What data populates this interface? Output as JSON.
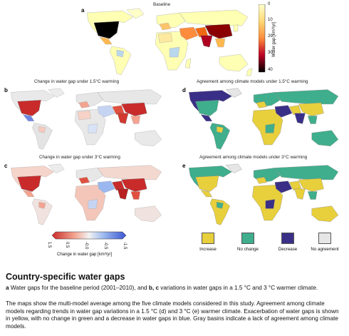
{
  "figure": {
    "panel_a": {
      "label": "a",
      "title": "Baseline"
    },
    "panel_b": {
      "label": "b",
      "title": "Change in water gap under 1.5°C warming"
    },
    "panel_c": {
      "label": "c",
      "title": "Change in water gap under 3°C warming"
    },
    "panel_d": {
      "label": "d",
      "title": "Agreement among climate models under 1.5°C warming"
    },
    "panel_e": {
      "label": "e",
      "title": "Agreement among climate models under 3°C warming"
    },
    "baseline_colorbar": {
      "label": "Water gap [km³/yr]",
      "ticks": [
        "0",
        "10",
        "20",
        "30",
        "40"
      ]
    },
    "change_colorbar": {
      "label": "Change in water gap [km³/yr]",
      "ticks": [
        "1.5",
        "0.5",
        "-0.0",
        "-0.5",
        "-1.5"
      ]
    },
    "legend": [
      {
        "label": "Increase",
        "color": "#e8cf3c"
      },
      {
        "label": "No change",
        "color": "#3fae8c"
      },
      {
        "label": "Decrease",
        "color": "#3a2f86"
      },
      {
        "label": "No agreement",
        "color": "#e6e6e6"
      }
    ]
  },
  "caption": {
    "title": "Country-specific water gaps",
    "line1_a": "a",
    "line1_text1": " Water gaps for the baseline period (2001–2010), and ",
    "line1_bc": "b, c",
    "line1_text2": " variations in water gaps in a 1.5 °C and 3 °C warmer climate.",
    "paragraph": "The maps show the multi-model average among the five climate models considered in this study. Agreement among climate models regarding trends in water gap variations in a 1.5 °C (d) and 3 °C (e) warmer climate. Exacerbation of water gaps is shown in yellow, with no change in green and a decrease in water gaps in blue. Gray basins indicate a lack of agreement among climate models."
  }
}
